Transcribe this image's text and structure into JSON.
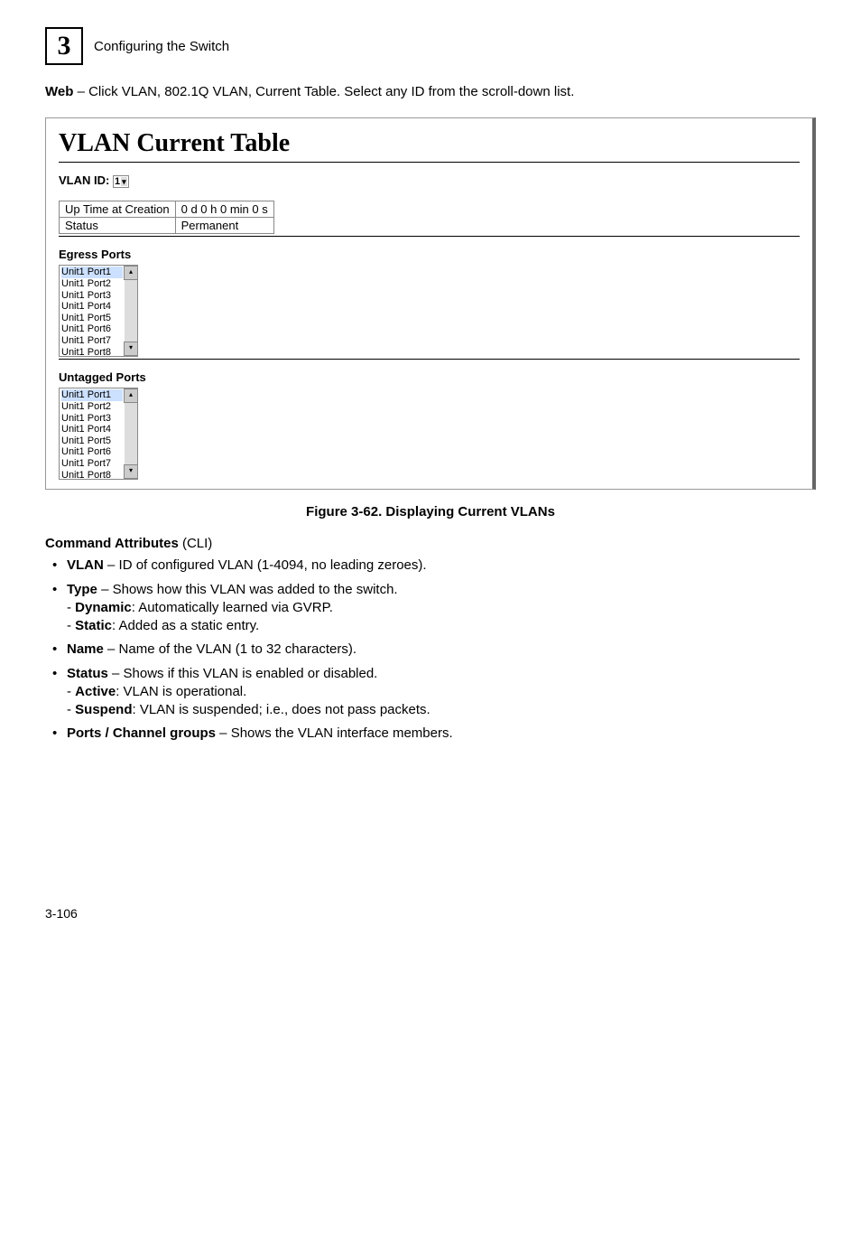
{
  "header": {
    "chapter_number": "3",
    "chapter_title": "Configuring the Switch"
  },
  "intro": {
    "web_bold": "Web",
    "web_rest": " – Click VLAN, 802.1Q VLAN, Current Table. Select any ID from the scroll-down list."
  },
  "panel": {
    "title": "VLAN Current Table",
    "vlan_id_label": "VLAN ID:",
    "vlan_id_value": "1",
    "info_rows": [
      [
        "Up Time at Creation",
        "0 d 0 h 0 min 0 s"
      ],
      [
        "Status",
        "Permanent"
      ]
    ],
    "egress_label": "Egress Ports",
    "egress_items": [
      "Unit1 Port1",
      "Unit1 Port2",
      "Unit1 Port3",
      "Unit1 Port4",
      "Unit1 Port5",
      "Unit1 Port6",
      "Unit1 Port7",
      "Unit1 Port8"
    ],
    "untagged_label": "Untagged Ports",
    "untagged_items": [
      "Unit1 Port1",
      "Unit1 Port2",
      "Unit1 Port3",
      "Unit1 Port4",
      "Unit1 Port5",
      "Unit1 Port6",
      "Unit1 Port7",
      "Unit1 Port8"
    ]
  },
  "figure_caption": "Figure 3-62.  Displaying Current VLANs",
  "cmd_attr_heading_bold": "Command Attributes",
  "cmd_attr_heading_rest": " (CLI)",
  "bullets": {
    "b0_bold": "VLAN",
    "b0_rest": " – ID of configured VLAN (1-4094, no leading zeroes).",
    "b1_bold": "Type",
    "b1_rest": " – Shows how this VLAN was added to the switch.",
    "b1s1_bold": "Dynamic",
    "b1s1_rest": ": Automatically learned via GVRP.",
    "b1s2_bold": "Static",
    "b1s2_rest": ": Added as a static entry.",
    "b2_bold": "Name",
    "b2_rest": " – Name of the VLAN (1 to 32 characters).",
    "b3_bold": "Status",
    "b3_rest": " – Shows if this VLAN is enabled or disabled.",
    "b3s1_bold": "Active",
    "b3s1_rest": ": VLAN is operational.",
    "b3s2_bold": "Suspend",
    "b3s2_rest": ": VLAN is suspended; i.e., does not pass packets.",
    "b4_bold": "Ports / Channel groups",
    "b4_rest": " – Shows the VLAN interface members."
  },
  "page_number": "3-106"
}
